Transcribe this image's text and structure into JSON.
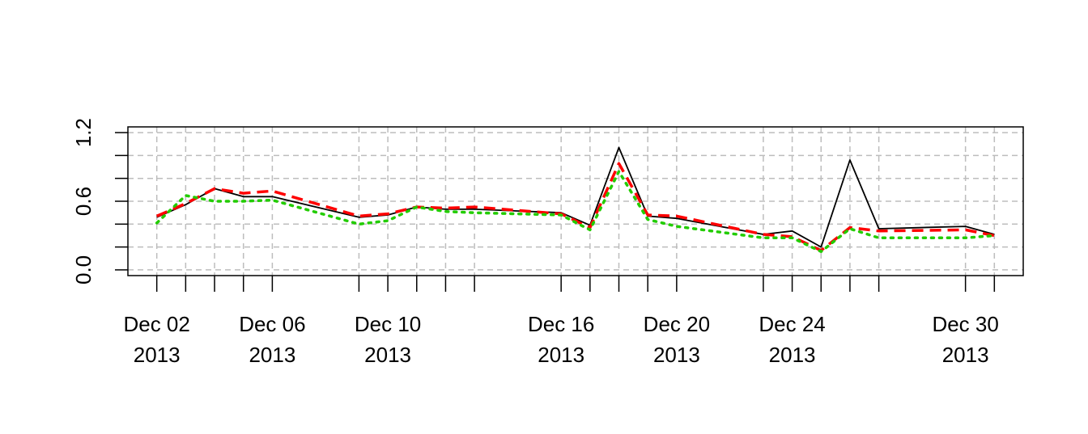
{
  "chart_data": {
    "type": "line",
    "title": "",
    "xlabel": "",
    "ylabel": "",
    "x_ticks": [
      {
        "date": "2013-12-02",
        "line1": "Dec 02",
        "line2": "2013"
      },
      {
        "date": "2013-12-06",
        "line1": "Dec 06",
        "line2": "2013"
      },
      {
        "date": "2013-12-10",
        "line1": "Dec 10",
        "line2": "2013"
      },
      {
        "date": "2013-12-16",
        "line1": "Dec 16",
        "line2": "2013"
      },
      {
        "date": "2013-12-20",
        "line1": "Dec 20",
        "line2": "2013"
      },
      {
        "date": "2013-12-24",
        "line1": "Dec 24",
        "line2": "2013"
      },
      {
        "date": "2013-12-30",
        "line1": "Dec 30",
        "line2": "2013"
      }
    ],
    "minor_tick_dates": [
      "2013-12-02",
      "2013-12-03",
      "2013-12-04",
      "2013-12-05",
      "2013-12-06",
      "2013-12-09",
      "2013-12-10",
      "2013-12-11",
      "2013-12-12",
      "2013-12-13",
      "2013-12-16",
      "2013-12-17",
      "2013-12-18",
      "2013-12-19",
      "2013-12-20",
      "2013-12-23",
      "2013-12-24",
      "2013-12-25",
      "2013-12-26",
      "2013-12-27",
      "2013-12-30",
      "2013-12-31"
    ],
    "y_ticks": [
      0.0,
      0.6,
      1.2
    ],
    "y_tick_labels": [
      "0.0",
      "0.6",
      "1.2"
    ],
    "ylim": [
      -0.05,
      1.25
    ],
    "xlim": [
      "2013-12-01",
      "2014-01-01"
    ],
    "grid": true,
    "x": [
      "2013-12-02",
      "2013-12-03",
      "2013-12-04",
      "2013-12-05",
      "2013-12-06",
      "2013-12-09",
      "2013-12-10",
      "2013-12-11",
      "2013-12-12",
      "2013-12-13",
      "2013-12-16",
      "2013-12-17",
      "2013-12-18",
      "2013-12-19",
      "2013-12-20",
      "2013-12-23",
      "2013-12-24",
      "2013-12-25",
      "2013-12-26",
      "2013-12-27",
      "2013-12-30",
      "2013-12-31"
    ],
    "series": [
      {
        "values": [
          0.46,
          0.57,
          0.71,
          0.64,
          0.64,
          0.46,
          0.48,
          0.55,
          0.53,
          0.53,
          0.5,
          0.39,
          1.07,
          0.47,
          0.45,
          0.31,
          0.34,
          0.2,
          0.96,
          0.36,
          0.38,
          0.31
        ],
        "color": "#000000",
        "style": "solid"
      },
      {
        "values": [
          0.47,
          0.58,
          0.71,
          0.67,
          0.69,
          0.47,
          0.49,
          0.55,
          0.54,
          0.55,
          0.49,
          0.37,
          0.93,
          0.48,
          0.47,
          0.31,
          0.29,
          0.17,
          0.37,
          0.34,
          0.35,
          0.3
        ],
        "color": "#ff0000",
        "style": "dashed"
      },
      {
        "values": [
          0.41,
          0.65,
          0.6,
          0.6,
          0.61,
          0.4,
          0.43,
          0.55,
          0.51,
          0.5,
          0.48,
          0.35,
          0.86,
          0.44,
          0.38,
          0.28,
          0.28,
          0.16,
          0.36,
          0.28,
          0.28,
          0.3
        ],
        "color": "#22cc00",
        "style": "dotted"
      }
    ]
  }
}
